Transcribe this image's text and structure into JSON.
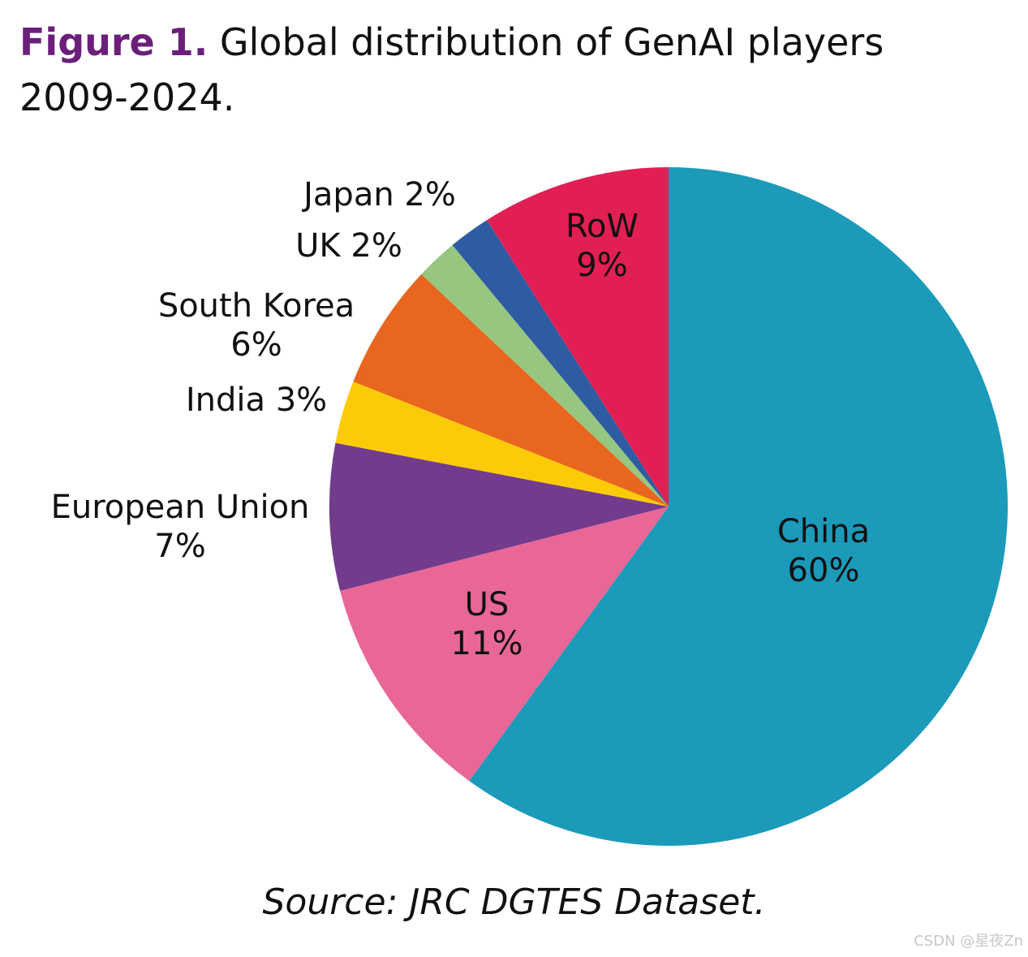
{
  "title": {
    "figure_label": "Figure 1.",
    "text_line1": "Global distribution of GenAI players",
    "text_line2": "2009-2024."
  },
  "source": "Source: JRC DGTES Dataset.",
  "watermark": "CSDN @星夜Zn",
  "chart_data": {
    "type": "pie",
    "start_angle": "12 o'clock",
    "direction": "clockwise",
    "slices": [
      {
        "label": "China",
        "value": 60,
        "value_label": "60%",
        "color": "#1b9aba"
      },
      {
        "label": "US",
        "value": 11,
        "value_label": "11%",
        "color": "#e96796"
      },
      {
        "label": "European Union",
        "value": 7,
        "value_label": "7%",
        "color": "#733b8c"
      },
      {
        "label": "India",
        "value": 3,
        "value_label": "3%",
        "color": "#fccb06"
      },
      {
        "label": "South Korea",
        "value": 6,
        "value_label": "6%",
        "color": "#e9661e"
      },
      {
        "label": "UK",
        "value": 2,
        "value_label": "2%",
        "color": "#96c680"
      },
      {
        "label": "Japan",
        "value": 2,
        "value_label": "2%",
        "color": "#2f5ba3"
      },
      {
        "label": "RoW",
        "value": 9,
        "value_label": "9%",
        "color": "#e21f53"
      }
    ]
  }
}
